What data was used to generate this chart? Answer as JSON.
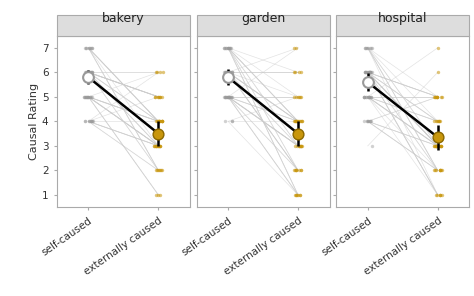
{
  "panels": [
    "bakery",
    "garden",
    "hospital"
  ],
  "self_caused_mean": [
    5.8,
    5.8,
    5.6
  ],
  "externally_caused_mean": [
    3.5,
    3.5,
    3.35
  ],
  "self_caused_ci": [
    0.28,
    0.32,
    0.38
  ],
  "externally_caused_ci": [
    0.52,
    0.52,
    0.52
  ],
  "ylabel": "Causal Rating",
  "xtick_labels": [
    "self-caused",
    "externally caused"
  ],
  "ylim": [
    0.5,
    7.5
  ],
  "yticks": [
    1,
    2,
    3,
    4,
    5,
    6,
    7
  ],
  "self_caused_color": "#999999",
  "externally_caused_color": "#C8960C",
  "mean_self_color": "#FFFFFF",
  "mean_dot_size": 60,
  "individual_dot_size": 6,
  "line_color_individual": "#CCCCCC",
  "line_color_mean": "#000000",
  "bg_color": "#FFFFFF",
  "strip_bg_color": "#DDDDDD",
  "n_participants": 50,
  "seed": 42
}
